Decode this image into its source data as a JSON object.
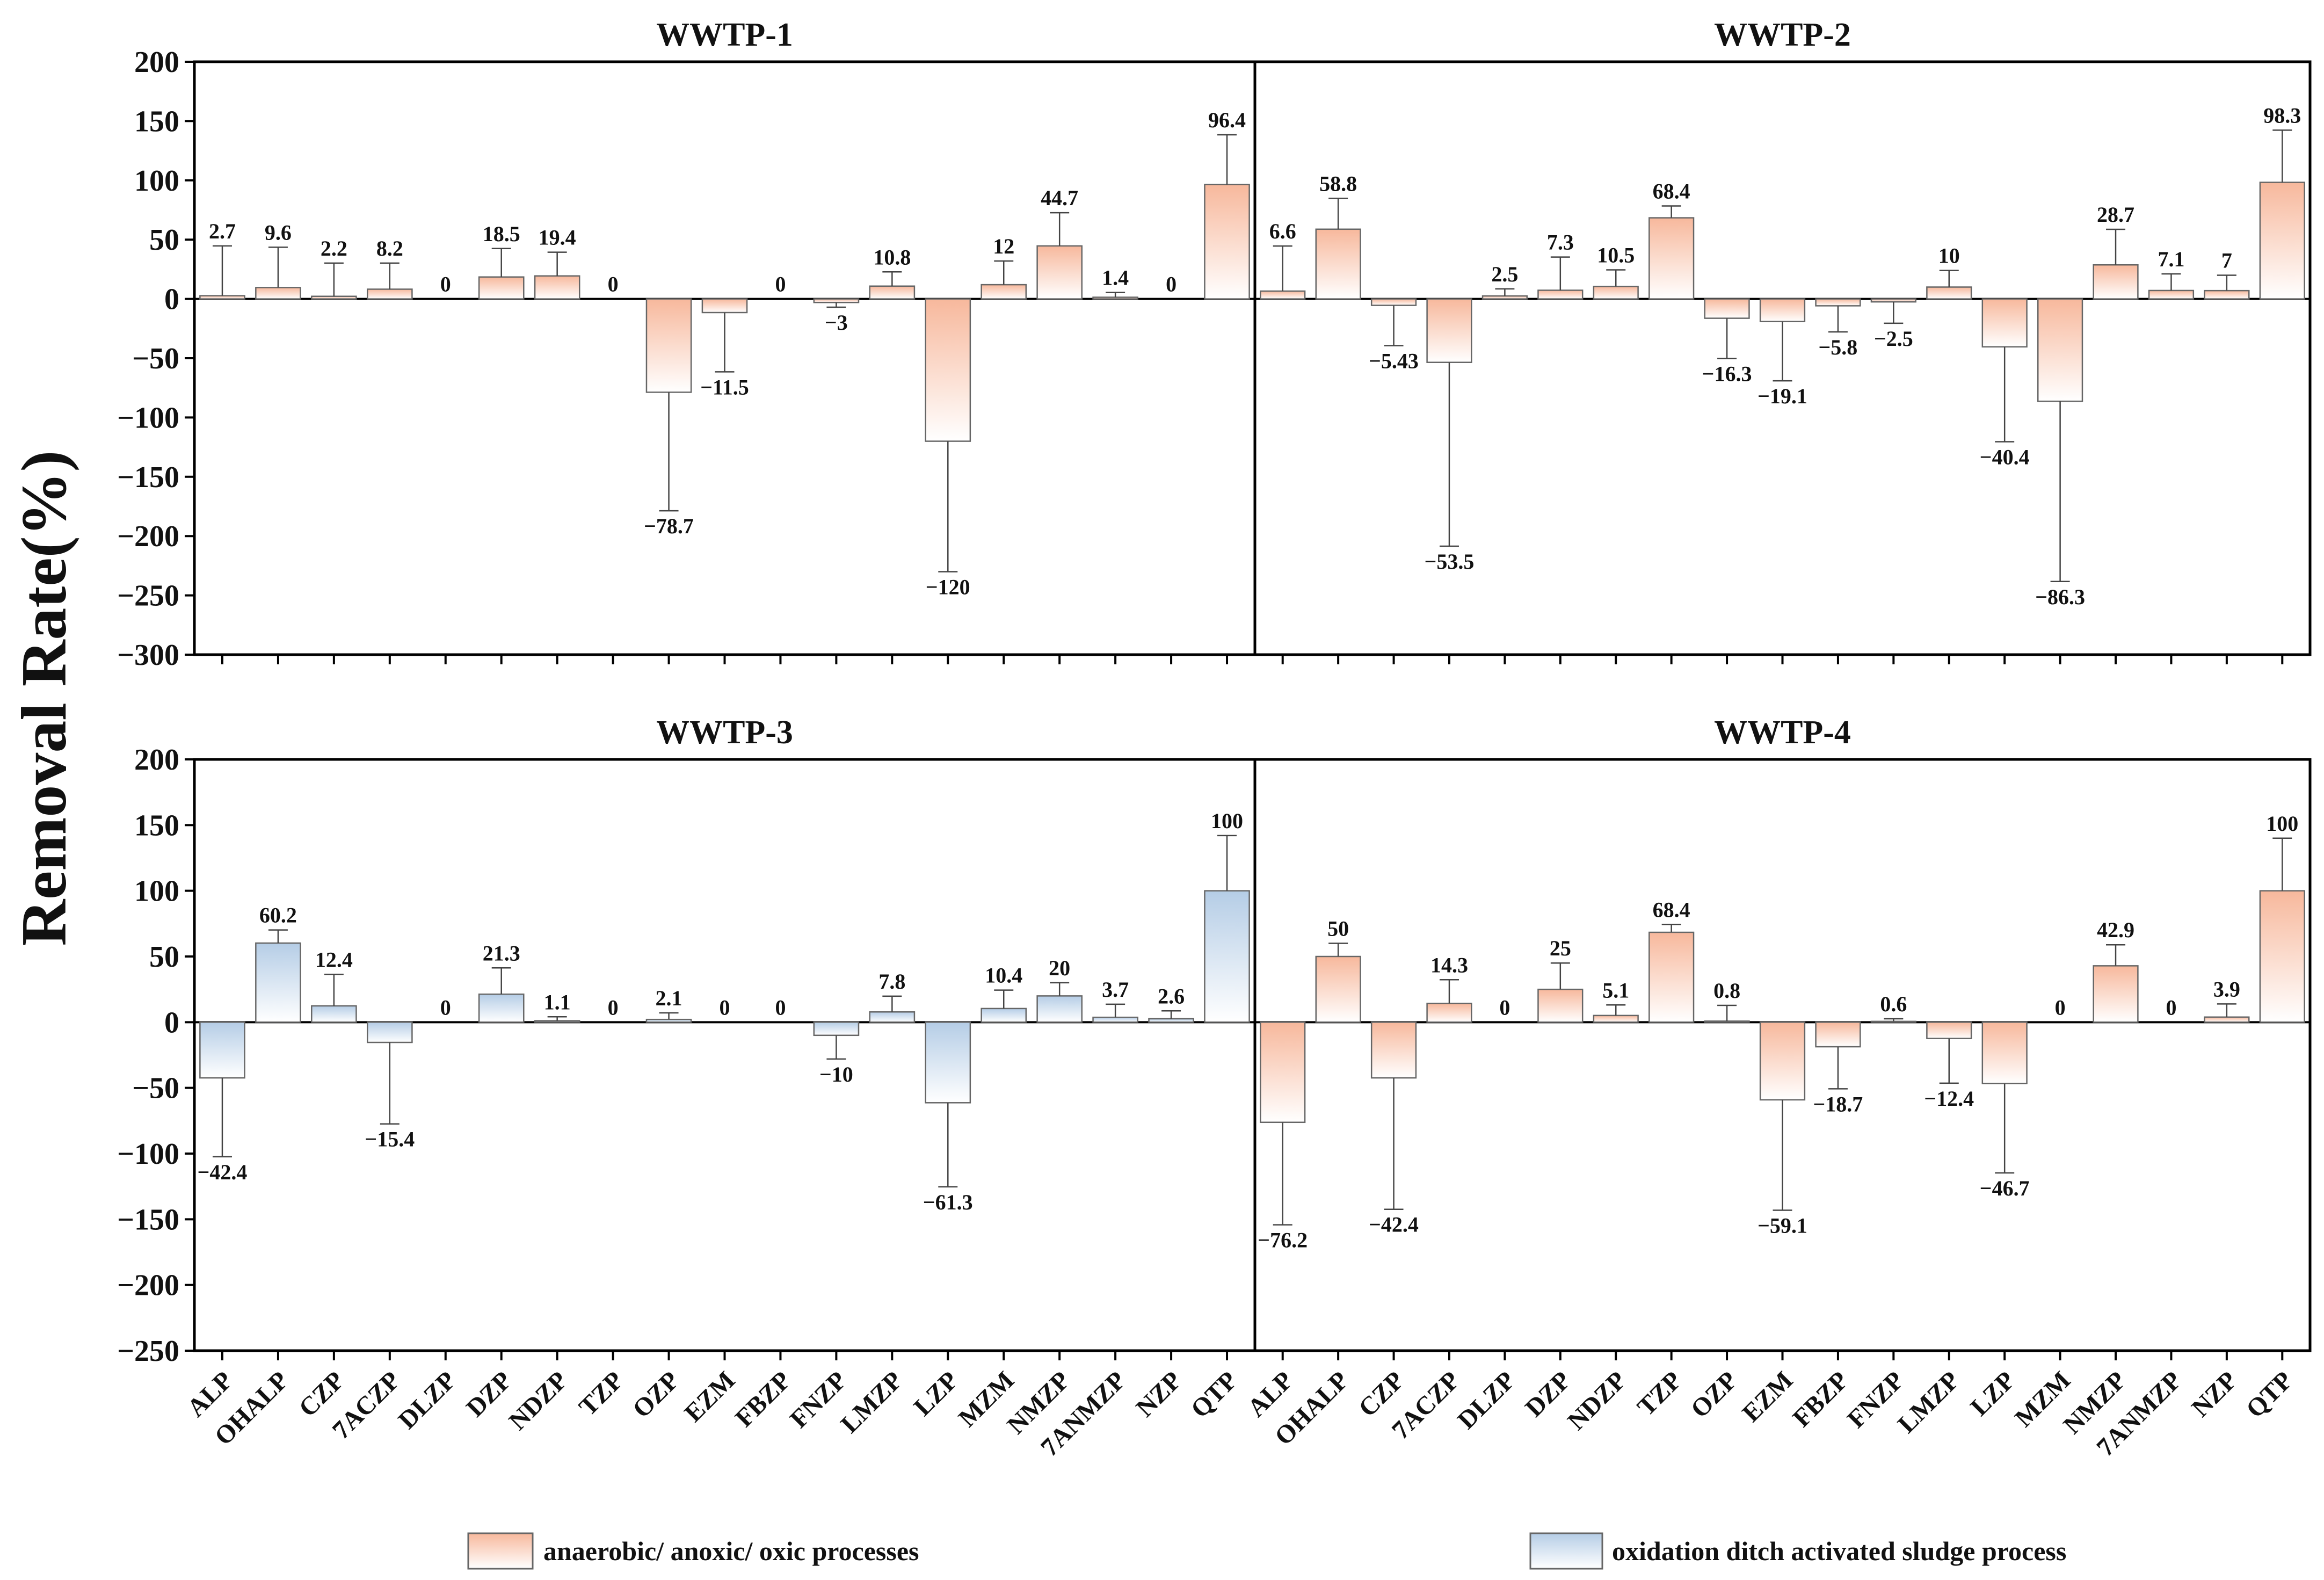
{
  "chart_data": {
    "type": "bar",
    "ylabel": "Removal Rate(%)",
    "categories": [
      "ALP",
      "OHALP",
      "CZP",
      "7ACZP",
      "DLZP",
      "DZP",
      "NDZP",
      "TZP",
      "OZP",
      "EZM",
      "FBZP",
      "FNZP",
      "LMZP",
      "LZP",
      "MZM",
      "NMZP",
      "7ANMZP",
      "NZP",
      "QTP"
    ],
    "legend": [
      {
        "label": "anaerobic/ anoxic/ oxic processes",
        "color": "#f7b89c"
      },
      {
        "label": "oxidation ditch activated sludge process",
        "color": "#b5cde6"
      }
    ],
    "panels": [
      {
        "title": "WWTP-1",
        "process": 0,
        "ylim": [
          -300,
          200
        ],
        "yticks": [
          200,
          150,
          100,
          50,
          0,
          -50,
          -100,
          -150,
          -200,
          -250,
          -300
        ],
        "values": [
          2.7,
          9.6,
          2.2,
          8.2,
          0,
          18.5,
          19.4,
          0,
          -78.7,
          -11.5,
          0,
          -3,
          10.8,
          -120,
          12,
          44.7,
          1.4,
          0,
          96.4
        ],
        "labels": [
          "2.7",
          "9.6",
          "2.2",
          "8.2",
          "0",
          "18.5",
          "19.4",
          "0",
          "−78.7",
          "−11.5",
          "0",
          "−3",
          "10.8",
          "−120",
          "12",
          "44.7",
          "1.4",
          "0",
          "96.4"
        ],
        "errors": [
          42,
          34,
          28,
          22,
          0,
          24,
          20,
          0,
          100,
          50,
          0,
          4,
          12,
          110,
          20,
          28,
          4,
          0,
          42
        ]
      },
      {
        "title": "WWTP-2",
        "process": 0,
        "ylim": [
          -300,
          200
        ],
        "yticks": [
          200,
          150,
          100,
          50,
          0,
          -50,
          -100,
          -150,
          -200,
          -250,
          -300
        ],
        "values": [
          6.6,
          58.8,
          -5.43,
          -53.5,
          2.5,
          7.3,
          10.5,
          68.4,
          -16.3,
          -19.1,
          -5.8,
          -2.5,
          10,
          -40.4,
          -86.3,
          28.7,
          7.1,
          7,
          98.3
        ],
        "labels": [
          "6.6",
          "58.8",
          "−5.43",
          "−53.5",
          "2.5",
          "7.3",
          "10.5",
          "68.4",
          "−16.3",
          "−19.1",
          "−5.8",
          "−2.5",
          "10",
          "−40.4",
          "−86.3",
          "28.7",
          "7.1",
          "7",
          "98.3"
        ],
        "errors": [
          38,
          26,
          34,
          155,
          6,
          28,
          14,
          10,
          34,
          50,
          22,
          18,
          14,
          80,
          152,
          30,
          14,
          13,
          44
        ]
      },
      {
        "title": "WWTP-3",
        "process": 1,
        "ylim": [
          -250,
          200
        ],
        "yticks": [
          200,
          150,
          100,
          50,
          0,
          -50,
          -100,
          -150,
          -200,
          -250
        ],
        "values": [
          -42.4,
          60.2,
          12.4,
          -15.4,
          0,
          21.3,
          1.1,
          0,
          2.1,
          0,
          0,
          -10,
          7.8,
          -61.3,
          10.4,
          20,
          3.7,
          2.6,
          100
        ],
        "labels": [
          "−42.4",
          "60.2",
          "12.4",
          "−15.4",
          "0",
          "21.3",
          "1.1",
          "0",
          "2.1",
          "0",
          "0",
          "−10",
          "7.8",
          "−61.3",
          "10.4",
          "20",
          "3.7",
          "2.6",
          "100"
        ],
        "errors": [
          60,
          10,
          24,
          62,
          0,
          20,
          3,
          0,
          5,
          0,
          0,
          18,
          12,
          64,
          14,
          10,
          10,
          6,
          42
        ]
      },
      {
        "title": "WWTP-4",
        "process": 0,
        "ylim": [
          -250,
          200
        ],
        "yticks": [
          200,
          150,
          100,
          50,
          0,
          -50,
          -100,
          -150,
          -200,
          -250
        ],
        "values": [
          -76.2,
          50,
          -42.4,
          14.3,
          0,
          25,
          5.1,
          68.4,
          0.8,
          -59.1,
          -18.7,
          0.6,
          -12.4,
          -46.7,
          0,
          42.9,
          0,
          3.9,
          100
        ],
        "labels": [
          "−76.2",
          "50",
          "−42.4",
          "14.3",
          "0",
          "25",
          "5.1",
          "68.4",
          "0.8",
          "−59.1",
          "−18.7",
          "0.6",
          "−12.4",
          "−46.7",
          "0",
          "42.9",
          "0",
          "3.9",
          "100"
        ],
        "errors": [
          78,
          10,
          100,
          18,
          0,
          20,
          8,
          6,
          12,
          84,
          32,
          2,
          34,
          68,
          0,
          16,
          0,
          10,
          40
        ]
      }
    ]
  }
}
